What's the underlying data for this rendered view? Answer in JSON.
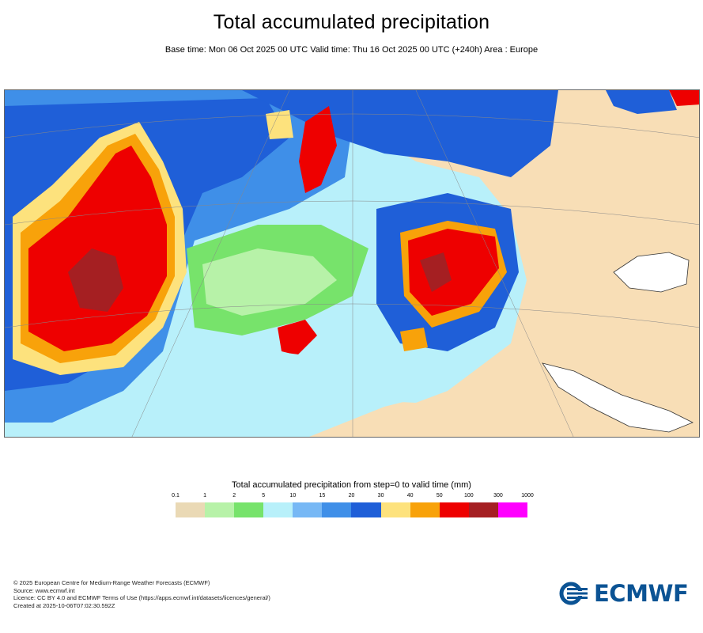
{
  "header": {
    "title": "Total accumulated precipitation",
    "subtitle": "Base time: Mon 06 Oct 2025 00 UTC Valid time: Thu 16 Oct 2025 00 UTC (+240h) Area : Europe"
  },
  "legend": {
    "title": "Total accumulated precipitation from step=0 to valid time (mm)",
    "ticks": [
      "0.1",
      "1",
      "2",
      "5",
      "10",
      "15",
      "20",
      "30",
      "40",
      "50",
      "100",
      "300",
      "1000"
    ],
    "colors": [
      "#ead9b5",
      "#b7f2a8",
      "#77e36b",
      "#b8f0fa",
      "#77b8f5",
      "#3f8fe8",
      "#1f5fd8",
      "#fde27d",
      "#f8a20a",
      "#ee0000",
      "#a51f22",
      "#ff00ff"
    ]
  },
  "map": {
    "land_color": "#f8deb6",
    "sea_color": "#ffffff"
  },
  "footer": {
    "line1": "© 2025 European Centre for Medium-Range Weather Forecasts (ECMWF)",
    "line2": "Source: www.ecmwf.int",
    "line3": "Licence: CC BY 4.0 and ECMWF Terms of Use (https://apps.ecmwf.int/datasets/licences/general/)",
    "line4": "Created at 2025-10-06T07:02:30.592Z"
  },
  "logo": {
    "text": "ECMWF",
    "icon": "ecmwf-logo-icon"
  }
}
